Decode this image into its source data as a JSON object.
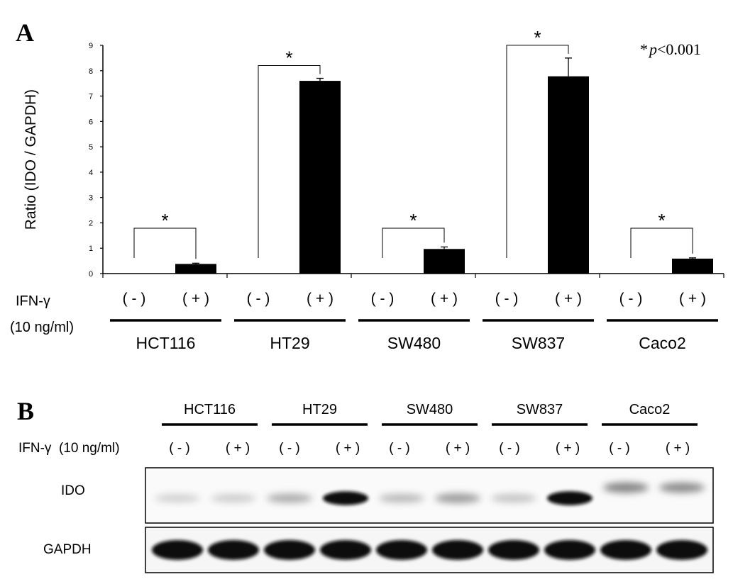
{
  "panel_a": {
    "letter": "A",
    "ylabel": "Ratio (IDO / GAPDH)",
    "p_note_star": "*",
    "p_note_p": "p",
    "p_note_value": "<0.001",
    "significance_mark": "*",
    "row_label_line1": "IFN-γ",
    "row_label_line2": "(10 ng/ml)",
    "treatment_labels": [
      "( - )",
      "( + )"
    ]
  },
  "panel_b": {
    "letter": "B",
    "row_label": "IFN-γ  (10 ng/ml)",
    "treatment_labels": [
      "( - )",
      "( + )"
    ],
    "blot_labels": [
      "IDO",
      "GAPDH"
    ],
    "ido_band_intensity": [
      0.12,
      0.14,
      0.28,
      0.95,
      0.22,
      0.35,
      0.18,
      0.98,
      0.45,
      0.42
    ],
    "gapdh_band_intensity": [
      0.95,
      0.95,
      0.96,
      0.96,
      0.97,
      0.97,
      0.95,
      0.96,
      0.96,
      0.95
    ]
  },
  "cell_lines": [
    "HCT116",
    "HT29",
    "SW480",
    "SW837",
    "Caco2"
  ],
  "chart_data": {
    "type": "bar",
    "categories": [
      "HCT116 (-)",
      "HCT116 (+)",
      "HT29 (-)",
      "HT29 (+)",
      "SW480 (-)",
      "SW480 (+)",
      "SW837 (-)",
      "SW837 (+)",
      "Caco2 (-)",
      "Caco2 (+)"
    ],
    "values": [
      0,
      0.38,
      0,
      7.6,
      0,
      0.97,
      0,
      7.78,
      0,
      0.59
    ],
    "errors": [
      0,
      0.03,
      0,
      0.1,
      0,
      0.08,
      0,
      0.72,
      0,
      0.03
    ],
    "ylabel": "Ratio (IDO / GAPDH)",
    "ylim": [
      0,
      9
    ],
    "yticks": [
      0,
      1,
      2,
      3,
      4,
      5,
      6,
      7,
      8,
      9
    ],
    "grid": false,
    "bar_color": "#000000"
  }
}
